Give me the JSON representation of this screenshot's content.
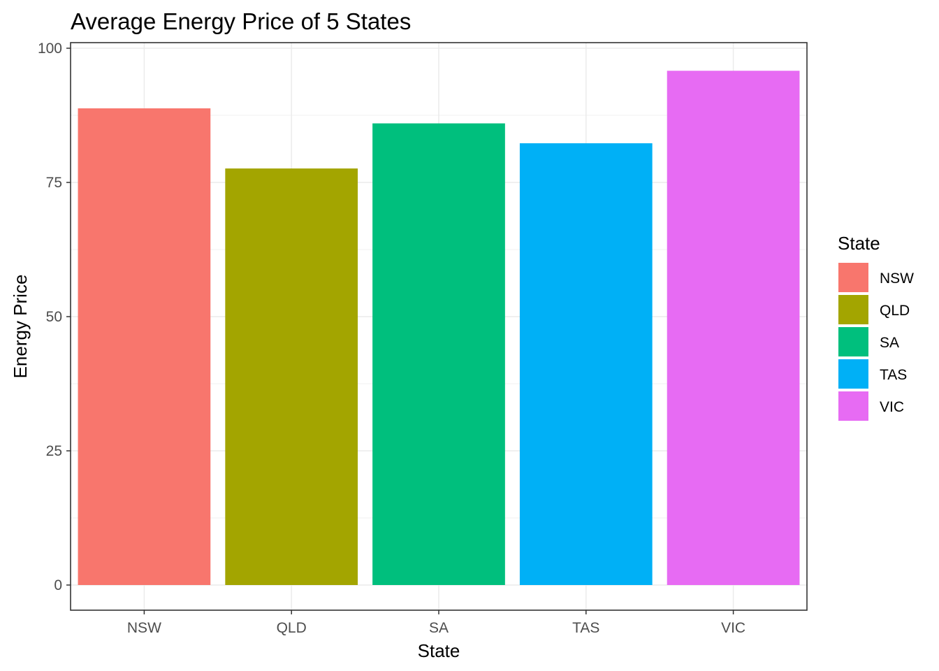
{
  "chart_data": {
    "type": "bar",
    "title": "Average Energy Price of 5 States",
    "xlabel": "State",
    "ylabel": "Energy Price",
    "categories": [
      "NSW",
      "QLD",
      "SA",
      "TAS",
      "VIC"
    ],
    "values": [
      88.8,
      77.6,
      86.0,
      82.3,
      95.8
    ],
    "colors": [
      "#F8766D",
      "#A3A500",
      "#00BF7D",
      "#00B0F6",
      "#E76BF3"
    ],
    "ylim": [
      0,
      100
    ],
    "yticks": [
      0,
      25,
      50,
      75,
      100
    ],
    "grid": true,
    "legend": {
      "title": "State",
      "placement": "right",
      "entries": [
        "NSW",
        "QLD",
        "SA",
        "TAS",
        "VIC"
      ]
    }
  }
}
